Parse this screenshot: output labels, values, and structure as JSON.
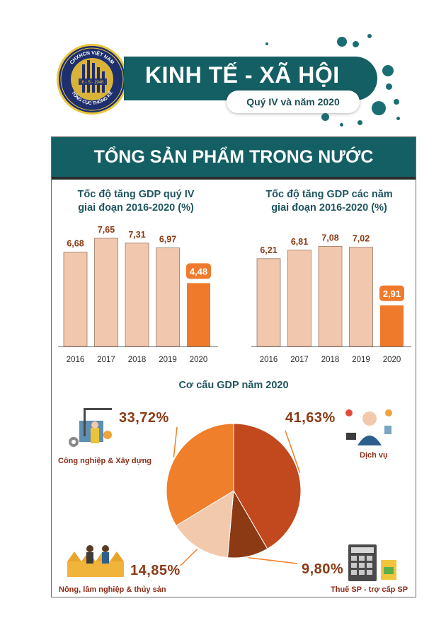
{
  "header": {
    "logo_top_text": "CHXHCN VIỆT NAM",
    "logo_date": "6 - 5 - 1946",
    "logo_bottom_text": "TỔNG CỤC THỐNG KÊ",
    "title": "KINH TẾ - XÃ HỘI",
    "subtitle": "Quý IV và năm 2020"
  },
  "section": {
    "title": "TỔNG SẢN PHẨM TRONG NƯỚC"
  },
  "colors": {
    "bar_normal": "#f1c8ae",
    "bar_highlight": "#ef7a2b",
    "teal": "#145f64",
    "pie_industry": "#f07f2c",
    "pie_services": "#c1491d",
    "pie_tax": "#8b3a14",
    "pie_agri": "#f2c9ad"
  },
  "chart_data": [
    {
      "type": "bar",
      "title_line1": "Tốc độ tăng GDP quý IV",
      "title_line2": "giai đoạn 2016-2020 (%)",
      "categories": [
        "2016",
        "2017",
        "2018",
        "2019",
        "2020"
      ],
      "values": [
        6.68,
        7.65,
        7.31,
        6.97,
        4.48
      ],
      "labels": [
        "6,68",
        "7,65",
        "7,31",
        "6,97",
        "4,48"
      ],
      "highlight_index": 4,
      "ylim": [
        0,
        8
      ]
    },
    {
      "type": "bar",
      "title_line1": "Tốc độ tăng GDP các năm",
      "title_line2": "giai đoạn 2016-2020 (%)",
      "categories": [
        "2016",
        "2017",
        "2018",
        "2019",
        "2020"
      ],
      "values": [
        6.21,
        6.81,
        7.08,
        7.02,
        2.91
      ],
      "labels": [
        "6,21",
        "6,81",
        "7,08",
        "7,02",
        "2,91"
      ],
      "highlight_index": 4,
      "ylim": [
        0,
        8
      ]
    },
    {
      "type": "pie",
      "title": "Cơ cấu GDP năm 2020",
      "slices": [
        {
          "name": "Dịch vụ",
          "value": 41.63,
          "label": "41,63%"
        },
        {
          "name": "Thuế SP - trợ cấp SP",
          "value": 9.8,
          "label": "9,80%"
        },
        {
          "name": "Nông, lâm nghiệp & thủy sản",
          "value": 14.85,
          "label": "14,85%"
        },
        {
          "name": "Công nghiệp & Xây dựng",
          "value": 33.72,
          "label": "33,72%"
        }
      ]
    }
  ]
}
